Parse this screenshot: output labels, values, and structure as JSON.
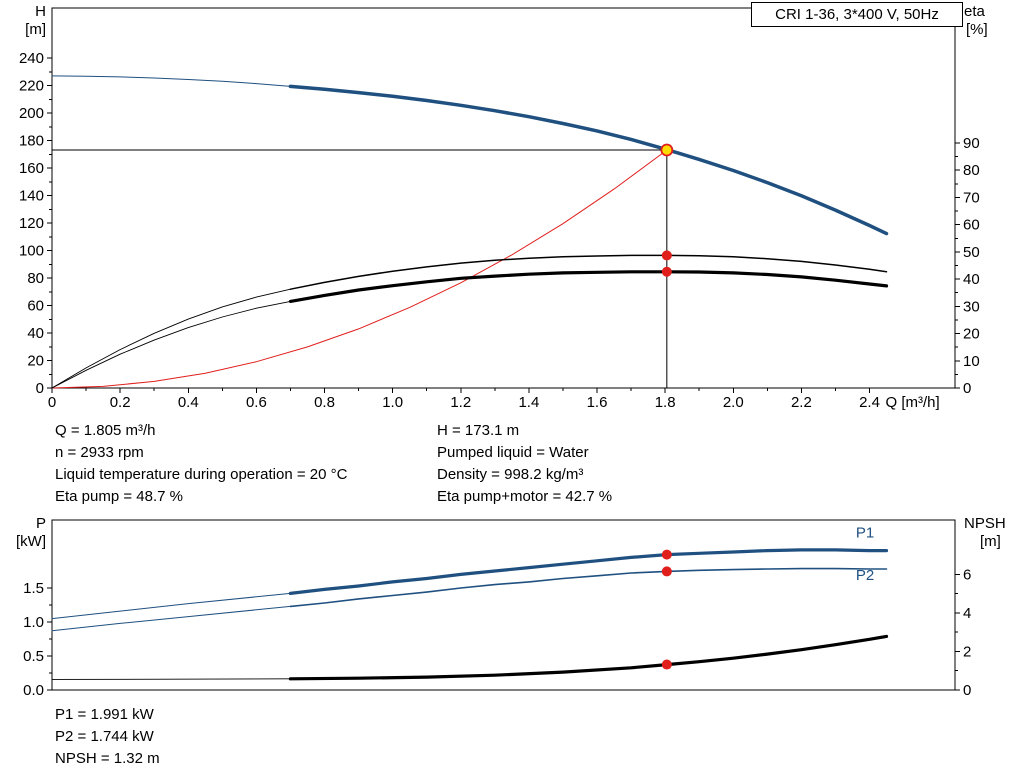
{
  "title_box": "CRI 1-36, 3*400 V, 50Hz",
  "info_top": {
    "left": [
      "Q = 1.805 m³/h",
      "n = 2933 rpm",
      "Liquid temperature during operation = 20 °C",
      "Eta pump = 48.7 %"
    ],
    "right": [
      "H = 173.1 m",
      "Pumped liquid = Water",
      "Density = 998.2 kg/m³",
      "Eta pump+motor = 42.7 %"
    ]
  },
  "info_bottom": [
    "P1 = 1.991 kW",
    "P2 = 1.744 kW",
    "NPSH = 1.32 m"
  ],
  "colors": {
    "curve_blue": "#1f5080",
    "curve_red": "#e01f1c",
    "curve_black": "#000000",
    "marker_yellow": "#ffdd00",
    "marker_red": "#e01f1c"
  },
  "chart_data": [
    {
      "type": "line",
      "title": "CRI 1-36, 3*400 V, 50Hz",
      "x": {
        "label": "Q [m³/h]",
        "min": 0,
        "max": 2.651,
        "ticks": [
          {
            "v": 0,
            "label": "0"
          },
          {
            "v": 0.2,
            "label": "0.2"
          },
          {
            "v": 0.4,
            "label": "0.4"
          },
          {
            "v": 0.6,
            "label": "0.6"
          },
          {
            "v": 0.8,
            "label": "0.8"
          },
          {
            "v": 1.0,
            "label": "1.0"
          },
          {
            "v": 1.2,
            "label": "1.2"
          },
          {
            "v": 1.4,
            "label": "1.4"
          },
          {
            "v": 1.6,
            "label": "1.6"
          },
          {
            "v": 1.8,
            "label": "1.8"
          },
          {
            "v": 2.0,
            "label": "2.0"
          },
          {
            "v": 2.2,
            "label": "2.2"
          },
          {
            "v": 2.4,
            "label": "2.4"
          }
        ]
      },
      "y_left": {
        "label": "H",
        "unit": "[m]",
        "min": 0,
        "max": 276.4,
        "ticks": [
          {
            "v": 0,
            "label": "0"
          },
          {
            "v": 20,
            "label": "20"
          },
          {
            "v": 40,
            "label": "40"
          },
          {
            "v": 60,
            "label": "60"
          },
          {
            "v": 80,
            "label": "80"
          },
          {
            "v": 100,
            "label": "100"
          },
          {
            "v": 120,
            "label": "120"
          },
          {
            "v": 140,
            "label": "140"
          },
          {
            "v": 160,
            "label": "160"
          },
          {
            "v": 180,
            "label": "180"
          },
          {
            "v": 200,
            "label": "200"
          },
          {
            "v": 220,
            "label": "220"
          },
          {
            "v": 240,
            "label": "240"
          }
        ]
      },
      "y_right": {
        "label": "eta",
        "unit": "[%]",
        "min": 0,
        "max": 139.6,
        "unit_indent": 2,
        "ticks": [
          {
            "v": 0,
            "label": "0"
          },
          {
            "v": 10,
            "label": "10"
          },
          {
            "v": 20,
            "label": "20"
          },
          {
            "v": 30,
            "label": "30"
          },
          {
            "v": 40,
            "label": "40"
          },
          {
            "v": 50,
            "label": "50"
          },
          {
            "v": 60,
            "label": "60"
          },
          {
            "v": 70,
            "label": "70"
          },
          {
            "v": 80,
            "label": "80"
          },
          {
            "v": 90,
            "label": "90"
          }
        ]
      },
      "crosshair": {
        "x": 1.805,
        "y": 173.1
      },
      "series": [
        {
          "name": "hq-curve-lead",
          "axis": "left",
          "color": "#1f5080",
          "width": 1,
          "points": [
            [
              0,
              227
            ],
            [
              0.1,
              226.8
            ],
            [
              0.2,
              226.3
            ],
            [
              0.3,
              225.5
            ],
            [
              0.4,
              224.4
            ],
            [
              0.5,
              223.1
            ],
            [
              0.6,
              221.4
            ],
            [
              0.7,
              219.4
            ]
          ]
        },
        {
          "name": "hq-curve",
          "axis": "left",
          "color": "#1f5080",
          "width": 3.5,
          "points": [
            [
              0.7,
              219.4
            ],
            [
              0.8,
              217.3
            ],
            [
              0.9,
              214.9
            ],
            [
              1.0,
              212.2
            ],
            [
              1.1,
              209.1
            ],
            [
              1.2,
              205.6
            ],
            [
              1.3,
              201.7
            ],
            [
              1.4,
              197.3
            ],
            [
              1.5,
              192.4
            ],
            [
              1.6,
              187.0
            ],
            [
              1.7,
              180.8
            ],
            [
              1.8,
              173.8
            ],
            [
              1.9,
              166.3
            ],
            [
              2.0,
              158.2
            ],
            [
              2.1,
              149.4
            ],
            [
              2.2,
              139.8
            ],
            [
              2.3,
              129.4
            ],
            [
              2.4,
              118.2
            ],
            [
              2.45,
              112.3
            ]
          ]
        },
        {
          "name": "system-curve",
          "axis": "left",
          "color": "#e01f1c",
          "width": 1,
          "points": [
            [
              0,
              0
            ],
            [
              0.15,
              1.2
            ],
            [
              0.3,
              4.8
            ],
            [
              0.45,
              10.8
            ],
            [
              0.6,
              19.1
            ],
            [
              0.75,
              29.9
            ],
            [
              0.9,
              43.0
            ],
            [
              1.05,
              58.6
            ],
            [
              1.2,
              76.5
            ],
            [
              1.35,
              96.8
            ],
            [
              1.5,
              119.5
            ],
            [
              1.65,
              144.7
            ],
            [
              1.8,
              172.1
            ],
            [
              1.805,
              173.1
            ]
          ]
        },
        {
          "name": "eta-pump-curve-lead",
          "axis": "right",
          "color": "#000000",
          "width": 0.9,
          "points": [
            [
              0,
              0
            ],
            [
              0.1,
              7.4
            ],
            [
              0.2,
              14.1
            ],
            [
              0.3,
              20.1
            ],
            [
              0.4,
              25.3
            ],
            [
              0.5,
              29.8
            ],
            [
              0.6,
              33.4
            ],
            [
              0.7,
              36.3
            ]
          ]
        },
        {
          "name": "eta-pump-curve",
          "axis": "right",
          "color": "#000000",
          "width": 1.5,
          "points": [
            [
              0.7,
              36.3
            ],
            [
              0.8,
              38.8
            ],
            [
              0.9,
              41.0
            ],
            [
              1.0,
              42.9
            ],
            [
              1.1,
              44.5
            ],
            [
              1.2,
              45.9
            ],
            [
              1.3,
              46.9
            ],
            [
              1.4,
              47.7
            ],
            [
              1.5,
              48.2
            ],
            [
              1.6,
              48.5
            ],
            [
              1.7,
              48.7
            ],
            [
              1.805,
              48.7
            ],
            [
              1.9,
              48.6
            ],
            [
              2.0,
              48.2
            ],
            [
              2.1,
              47.5
            ],
            [
              2.2,
              46.5
            ],
            [
              2.3,
              45.2
            ],
            [
              2.4,
              43.6
            ],
            [
              2.45,
              42.7
            ]
          ]
        },
        {
          "name": "eta-pump-motor-curve-lead",
          "axis": "right",
          "color": "#000000",
          "width": 0.9,
          "points": [
            [
              0,
              0
            ],
            [
              0.1,
              6.5
            ],
            [
              0.2,
              12.4
            ],
            [
              0.3,
              17.6
            ],
            [
              0.4,
              22.2
            ],
            [
              0.5,
              26.1
            ],
            [
              0.6,
              29.3
            ],
            [
              0.7,
              31.8
            ]
          ]
        },
        {
          "name": "eta-pump-motor-curve",
          "axis": "right",
          "color": "#000000",
          "width": 3.2,
          "points": [
            [
              0.7,
              31.8
            ],
            [
              0.8,
              34.0
            ],
            [
              0.9,
              36.0
            ],
            [
              1.0,
              37.6
            ],
            [
              1.1,
              39.0
            ],
            [
              1.2,
              40.3
            ],
            [
              1.3,
              41.1
            ],
            [
              1.4,
              41.8
            ],
            [
              1.5,
              42.3
            ],
            [
              1.6,
              42.5
            ],
            [
              1.7,
              42.7
            ],
            [
              1.805,
              42.7
            ],
            [
              1.9,
              42.6
            ],
            [
              2.0,
              42.3
            ],
            [
              2.1,
              41.7
            ],
            [
              2.2,
              40.8
            ],
            [
              2.3,
              39.6
            ],
            [
              2.4,
              38.2
            ],
            [
              2.45,
              37.5
            ]
          ]
        }
      ],
      "markers": [
        {
          "name": "eta-pump-point",
          "x": 1.805,
          "y": 48.7,
          "axis": "right",
          "r": 5,
          "fill": "#e01f1c"
        },
        {
          "name": "eta-pump-motor-point",
          "x": 1.805,
          "y": 42.7,
          "axis": "right",
          "r": 5,
          "fill": "#e01f1c"
        },
        {
          "name": "duty-point",
          "x": 1.805,
          "y": 173.1,
          "axis": "left",
          "r": 5.5,
          "fill": "#ffdd00",
          "stroke": "#e01f1c"
        }
      ]
    },
    {
      "type": "line",
      "x": {
        "label": "",
        "min": 0,
        "max": 2.651,
        "ticks": []
      },
      "y_left": {
        "label": "P",
        "unit": "[kW]",
        "min": 0,
        "max": 2.5,
        "ticks": [
          {
            "v": 0,
            "label": "0.0"
          },
          {
            "v": 0.5,
            "label": "0.5"
          },
          {
            "v": 1.0,
            "label": "1.0"
          },
          {
            "v": 1.5,
            "label": "1.5"
          }
        ]
      },
      "y_right": {
        "label": "NPSH",
        "unit": "[m]",
        "min": 0,
        "max": 8.82,
        "unit_indent": 16,
        "ticks": [
          {
            "v": 0,
            "label": "0"
          },
          {
            "v": 2,
            "label": "2"
          },
          {
            "v": 4,
            "label": "4"
          },
          {
            "v": 6,
            "label": "6"
          }
        ]
      },
      "series": [
        {
          "name": "p1-curve-lead",
          "axis": "left",
          "color": "#1f5080",
          "width": 1,
          "points": [
            [
              0,
              1.05
            ],
            [
              0.2,
              1.16
            ],
            [
              0.4,
              1.27
            ],
            [
              0.6,
              1.37
            ],
            [
              0.7,
              1.42
            ]
          ]
        },
        {
          "name": "p1-curve",
          "axis": "left",
          "color": "#1f5080",
          "width": 3.2,
          "points": [
            [
              0.7,
              1.42
            ],
            [
              0.8,
              1.48
            ],
            [
              0.9,
              1.53
            ],
            [
              1.0,
              1.59
            ],
            [
              1.1,
              1.64
            ],
            [
              1.2,
              1.7
            ],
            [
              1.3,
              1.75
            ],
            [
              1.4,
              1.8
            ],
            [
              1.5,
              1.85
            ],
            [
              1.6,
              1.9
            ],
            [
              1.7,
              1.95
            ],
            [
              1.805,
              1.991
            ],
            [
              1.9,
              2.01
            ],
            [
              2.0,
              2.03
            ],
            [
              2.1,
              2.05
            ],
            [
              2.2,
              2.06
            ],
            [
              2.3,
              2.06
            ],
            [
              2.4,
              2.05
            ],
            [
              2.45,
              2.05
            ]
          ]
        },
        {
          "name": "p2-curve-lead",
          "axis": "left",
          "color": "#1f5080",
          "width": 1,
          "points": [
            [
              0,
              0.87
            ],
            [
              0.2,
              0.98
            ],
            [
              0.4,
              1.08
            ],
            [
              0.6,
              1.18
            ],
            [
              0.7,
              1.23
            ]
          ]
        },
        {
          "name": "p2-curve",
          "axis": "left",
          "color": "#1f5080",
          "width": 1.6,
          "points": [
            [
              0.7,
              1.23
            ],
            [
              0.8,
              1.28
            ],
            [
              0.9,
              1.34
            ],
            [
              1.0,
              1.39
            ],
            [
              1.1,
              1.44
            ],
            [
              1.2,
              1.5
            ],
            [
              1.3,
              1.55
            ],
            [
              1.4,
              1.59
            ],
            [
              1.5,
              1.64
            ],
            [
              1.6,
              1.68
            ],
            [
              1.7,
              1.72
            ],
            [
              1.805,
              1.744
            ],
            [
              1.9,
              1.76
            ],
            [
              2.0,
              1.77
            ],
            [
              2.1,
              1.78
            ],
            [
              2.2,
              1.785
            ],
            [
              2.3,
              1.785
            ],
            [
              2.4,
              1.78
            ],
            [
              2.45,
              1.78
            ]
          ]
        },
        {
          "name": "npsh-curve-lead",
          "axis": "right",
          "color": "#000000",
          "width": 0.9,
          "points": [
            [
              0,
              0.55
            ],
            [
              0.35,
              0.56
            ],
            [
              0.7,
              0.58
            ]
          ]
        },
        {
          "name": "npsh-curve",
          "axis": "right",
          "color": "#000000",
          "width": 3.2,
          "points": [
            [
              0.7,
              0.58
            ],
            [
              0.9,
              0.61
            ],
            [
              1.1,
              0.67
            ],
            [
              1.3,
              0.77
            ],
            [
              1.5,
              0.93
            ],
            [
              1.7,
              1.15
            ],
            [
              1.805,
              1.32
            ],
            [
              1.9,
              1.47
            ],
            [
              2.0,
              1.65
            ],
            [
              2.1,
              1.86
            ],
            [
              2.2,
              2.09
            ],
            [
              2.3,
              2.35
            ],
            [
              2.4,
              2.63
            ],
            [
              2.45,
              2.78
            ]
          ]
        }
      ],
      "markers": [
        {
          "name": "p1-point",
          "x": 1.805,
          "y": 1.991,
          "axis": "left",
          "r": 5,
          "fill": "#e01f1c"
        },
        {
          "name": "p2-point",
          "x": 1.805,
          "y": 1.744,
          "axis": "left",
          "r": 5,
          "fill": "#e01f1c"
        },
        {
          "name": "npsh-point",
          "x": 1.805,
          "y": 1.32,
          "axis": "right",
          "r": 5,
          "fill": "#e01f1c"
        }
      ],
      "curve_labels": [
        {
          "name": "p1-label",
          "text": "P1",
          "x": 2.36,
          "y": 2.24,
          "color": "#1f5080"
        },
        {
          "name": "p2-label",
          "text": "P2",
          "x": 2.36,
          "y": 1.62,
          "color": "#1f5080"
        }
      ]
    }
  ]
}
